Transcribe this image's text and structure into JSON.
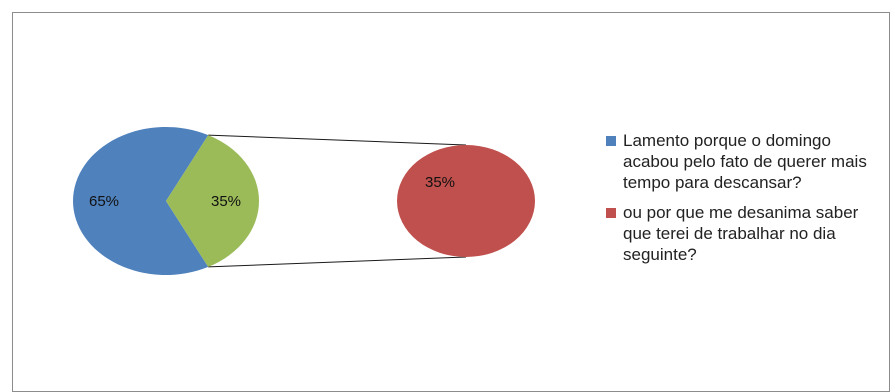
{
  "chart_data": {
    "type": "pie",
    "subtype": "pie-of-pie",
    "title": "",
    "slices": [
      {
        "label": "65%",
        "value": 65,
        "color": "#4f81bd"
      },
      {
        "label": "35%",
        "value": 35,
        "color": "#9bbb59"
      }
    ],
    "secondary": {
      "label": "35%",
      "value": 35,
      "color": "#c0504d"
    },
    "legend": {
      "placement": "right",
      "entries": [
        {
          "name": "Lamento porque  o domingo acabou pelo fato de querer mais tempo para descansar?",
          "color": "#4f81bd"
        },
        {
          "name": "ou por que me desanima saber que terei de trabalhar no dia seguinte?",
          "color": "#c0504d"
        }
      ]
    }
  }
}
